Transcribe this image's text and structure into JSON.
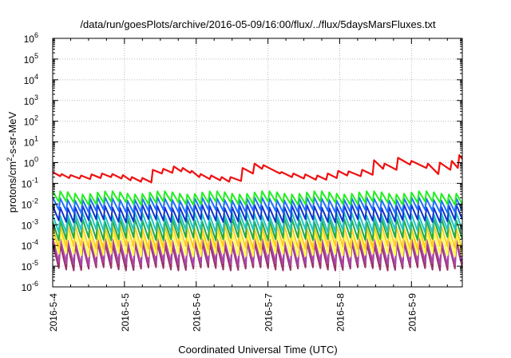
{
  "chart_data": {
    "type": "line",
    "title": "/data/run/goesPlots/archive/2016-05-09/16:00/flux/../flux/5daysMarsFluxes.txt",
    "xlabel": "Coordinated Universal Time (UTC)",
    "ylabel": "protons/cm²-s-sr-MeV",
    "ylabel_parts": [
      "protons/cm",
      "2",
      "-s-sr-MeV"
    ],
    "xscale": "time",
    "yscale": "log",
    "xlim": [
      "2016-05-04T00:00",
      "2016-05-09T17:00"
    ],
    "ylim": [
      1e-06,
      1000000.0
    ],
    "grid": true,
    "legend": "none",
    "x_ticks": [
      "2016-5-4",
      "2016-5-5",
      "2016-5-6",
      "2016-5-7",
      "2016-5-8",
      "2016-5-9"
    ],
    "y_ticks": [
      {
        "base": "10",
        "exp": "-6"
      },
      {
        "base": "10",
        "exp": "-5"
      },
      {
        "base": "10",
        "exp": "-4"
      },
      {
        "base": "10",
        "exp": "-3"
      },
      {
        "base": "10",
        "exp": "-2"
      },
      {
        "base": "10",
        "exp": "-1"
      },
      {
        "base": "10",
        "exp": "0"
      },
      {
        "base": "10",
        "exp": "1"
      },
      {
        "base": "10",
        "exp": "2"
      },
      {
        "base": "10",
        "exp": "3"
      },
      {
        "base": "10",
        "exp": "4"
      },
      {
        "base": "10",
        "exp": "5"
      },
      {
        "base": "10",
        "exp": "6"
      }
    ],
    "series": [
      {
        "color": "#ee1111",
        "x": [
          "2016-05-04T00:00",
          "2016-05-04T02:30",
          "2016-05-04T03:00",
          "2016-05-04T05:30",
          "2016-05-04T06:00",
          "2016-05-04T09:00",
          "2016-05-04T09:30",
          "2016-05-04T12:30",
          "2016-05-04T13:00",
          "2016-05-04T16:00",
          "2016-05-04T16:30",
          "2016-05-04T19:30",
          "2016-05-04T20:00",
          "2016-05-04T23:00",
          "2016-05-04T23:30",
          "2016-05-05T02:00",
          "2016-05-05T02:30",
          "2016-05-05T05:30",
          "2016-05-05T06:00",
          "2016-05-05T09:00",
          "2016-05-05T09:30",
          "2016-05-05T12:30",
          "2016-05-05T13:00",
          "2016-05-05T16:00",
          "2016-05-05T16:30",
          "2016-05-05T19:00",
          "2016-05-05T19:30",
          "2016-05-05T22:00",
          "2016-05-05T22:30",
          "2016-05-06T01:00",
          "2016-05-06T01:30",
          "2016-05-06T04:30",
          "2016-05-06T05:00",
          "2016-05-06T08:00",
          "2016-05-06T08:30",
          "2016-05-06T11:00",
          "2016-05-06T11:30",
          "2016-05-06T15:00",
          "2016-05-06T15:30",
          "2016-05-06T19:00",
          "2016-05-06T19:30",
          "2016-05-06T22:00",
          "2016-05-06T22:30",
          "2016-05-07T04:00",
          "2016-05-07T04:30",
          "2016-05-07T08:00",
          "2016-05-07T08:30",
          "2016-05-07T12:00",
          "2016-05-07T12:30",
          "2016-05-07T16:00",
          "2016-05-07T16:30",
          "2016-05-07T19:30",
          "2016-05-07T20:00",
          "2016-05-07T23:00",
          "2016-05-07T23:30",
          "2016-05-08T02:30",
          "2016-05-08T03:00",
          "2016-05-08T07:00",
          "2016-05-08T07:30",
          "2016-05-08T11:00",
          "2016-05-08T11:30",
          "2016-05-08T14:30",
          "2016-05-08T15:00",
          "2016-05-08T19:00",
          "2016-05-08T19:30",
          "2016-05-08T23:30",
          "2016-05-09T00:00",
          "2016-05-09T05:00",
          "2016-05-09T05:30",
          "2016-05-09T09:00",
          "2016-05-09T09:30",
          "2016-05-09T13:00",
          "2016-05-09T13:30",
          "2016-05-09T15:30",
          "2016-05-09T16:00",
          "2016-05-09T17:00"
        ],
        "y": [
          0.35,
          0.22,
          0.28,
          0.18,
          0.25,
          0.17,
          0.24,
          0.16,
          0.27,
          0.18,
          0.3,
          0.2,
          0.28,
          0.17,
          0.25,
          0.14,
          0.2,
          0.12,
          0.18,
          0.11,
          0.45,
          0.3,
          0.5,
          0.32,
          0.65,
          0.38,
          0.55,
          0.32,
          0.4,
          0.2,
          0.28,
          0.16,
          0.24,
          0.14,
          0.2,
          0.12,
          0.2,
          0.13,
          0.55,
          0.3,
          0.9,
          0.5,
          0.75,
          0.3,
          0.35,
          0.2,
          0.3,
          0.17,
          0.27,
          0.15,
          0.24,
          0.15,
          0.3,
          0.18,
          0.4,
          0.24,
          0.38,
          0.22,
          0.45,
          0.26,
          1.3,
          0.5,
          0.9,
          0.45,
          1.7,
          0.8,
          1.2,
          0.55,
          0.9,
          0.28,
          1.0,
          0.45,
          1.2,
          0.55,
          2.3,
          1.5
        ]
      },
      {
        "color": "#22ee22",
        "base": 0.02,
        "amp": 3.2
      },
      {
        "color": "#1f6fff",
        "base": 0.009,
        "amp": 4.0
      },
      {
        "color": "#1133cc",
        "base": 0.0035,
        "amp": 5.0
      },
      {
        "color": "#22c3c3",
        "base": 0.0013,
        "amp": 6.5
      },
      {
        "color": "#22aa44",
        "base": 0.0006,
        "amp": 8.0
      },
      {
        "color": "#ffcc22",
        "base": 0.00025,
        "amp": 10.0
      },
      {
        "color": "#ffff44",
        "base": 0.00012,
        "amp": 11.0
      },
      {
        "color": "#aa44aa",
        "base": 5e-05,
        "amp": 14.0
      },
      {
        "color": "#993366",
        "base": 3e-05,
        "amp": 16.0
      }
    ]
  }
}
